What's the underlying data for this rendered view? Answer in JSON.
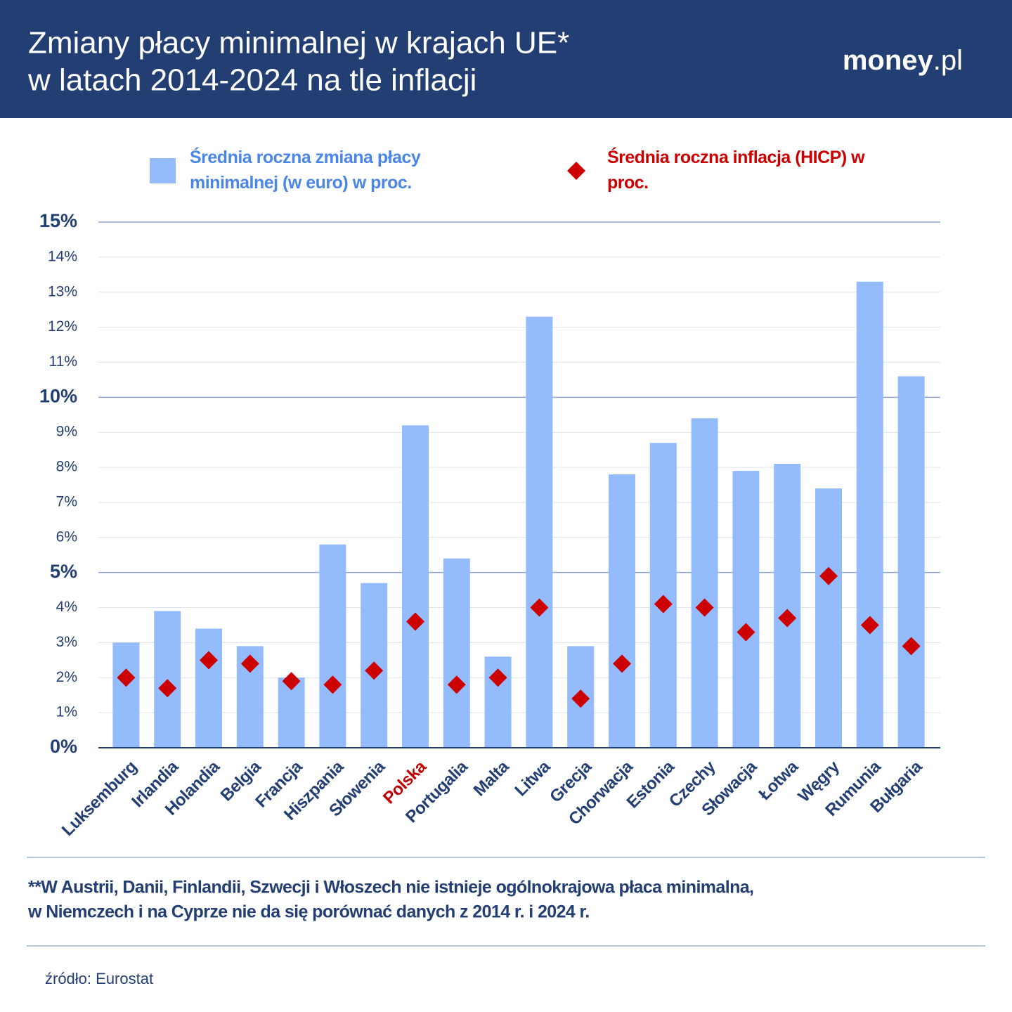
{
  "chart_data": {
    "type": "bar",
    "title": [
      "Zmiany płacy minimalnej w krajach UE*",
      "w latach 2014-2024 na tle inflacji"
    ],
    "brand": [
      "money",
      ".pl"
    ],
    "categories": [
      "Luksemburg",
      "Irlandia",
      "Holandia",
      "Belgia",
      "Francja",
      "Hiszpania",
      "Słowenia",
      "Polska",
      "Portugalia",
      "Malta",
      "Litwa",
      "Grecja",
      "Chorwacja",
      "Estonia",
      "Czechy",
      "Słowacja",
      "Łotwa",
      "Węgry",
      "Rumunia",
      "Bułgaria"
    ],
    "category_label_colors": [
      "#233e72",
      "#233e72",
      "#233e72",
      "#233e72",
      "#233e72",
      "#233e72",
      "#233e72",
      "#c00000",
      "#233e72",
      "#233e72",
      "#233e72",
      "#233e72",
      "#233e72",
      "#233e72",
      "#233e72",
      "#233e72",
      "#233e72",
      "#233e72",
      "#233e72",
      "#233e72"
    ],
    "series": [
      {
        "name": "Średnia roczna zmiana płacy minimalnej (w euro) w proc.",
        "type": "bar",
        "color": "#94bbfc",
        "values": [
          3.0,
          3.9,
          3.4,
          2.9,
          2.0,
          5.8,
          4.7,
          9.2,
          5.4,
          2.6,
          12.3,
          2.9,
          7.8,
          8.7,
          9.4,
          7.9,
          8.1,
          7.4,
          13.3,
          10.6
        ]
      },
      {
        "name": "Średnia roczna inflacja (HICP) w proc.",
        "type": "diamond",
        "color": "#cc0000",
        "values": [
          2.0,
          1.7,
          2.5,
          2.4,
          1.9,
          1.8,
          2.2,
          3.6,
          1.8,
          2.0,
          4.0,
          1.4,
          2.4,
          4.1,
          4.0,
          3.3,
          3.7,
          4.9,
          3.5,
          2.9
        ]
      }
    ],
    "ylim": [
      0,
      15
    ],
    "yticks": [
      {
        "value": 0,
        "label": "0%"
      },
      {
        "value": 1,
        "label": "1%"
      },
      {
        "value": 2,
        "label": "2%"
      },
      {
        "value": 3,
        "label": "3%"
      },
      {
        "value": 4,
        "label": "4%"
      },
      {
        "value": 5,
        "label": "5%"
      },
      {
        "value": 6,
        "label": "6%"
      },
      {
        "value": 7,
        "label": "7%"
      },
      {
        "value": 8,
        "label": "8%"
      },
      {
        "value": 9,
        "label": "9%"
      },
      {
        "value": 10,
        "label": "10%"
      },
      {
        "value": 11,
        "label": "11%"
      },
      {
        "value": 12,
        "label": "12%"
      },
      {
        "value": 13,
        "label": "13%"
      },
      {
        "value": 14,
        "label": "14%"
      },
      {
        "value": 15,
        "label": "15%"
      }
    ],
    "grid": true,
    "footnote": [
      "**W Austrii, Danii, Finlandii, Szwecji i Włoszech nie istnieje ogólnokrajowa płaca minimalna,",
      "w Niemczech i na Cyprze nie da się porównać danych z 2014 r. i 2024 r."
    ],
    "source": "źródło: Eurostat"
  }
}
